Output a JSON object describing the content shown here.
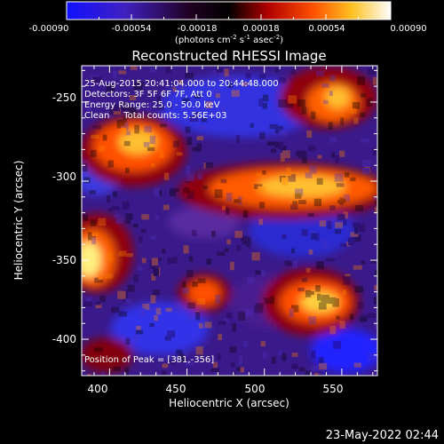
{
  "colorbar": {
    "tick_labels": [
      "-0.00090",
      "-0.00054",
      "-0.00018",
      "0.00018",
      "0.00054",
      "0.00090"
    ],
    "unit_label": "(photons cm",
    "unit_sup1": "-2",
    "unit_mid": " s",
    "unit_sup2": "-1",
    "unit_end": " asec",
    "unit_sup3": "-2",
    "unit_close": ")",
    "range": [
      -0.0009,
      0.0009
    ],
    "colormap": [
      "#0000ff",
      "#000000",
      "#c00000",
      "#ff7000",
      "#ffff40",
      "#ffffff"
    ]
  },
  "plot": {
    "title": "Reconstructed RHESSI Image",
    "xlabel": "Heliocentric X (arcsec)",
    "ylabel": "Heliocentric Y (arcsec)",
    "x_ticks": [
      "400",
      "450",
      "500",
      "550"
    ],
    "y_ticks": [
      "-250",
      "-300",
      "-350",
      "-400"
    ],
    "xlim": [
      382,
      573
    ],
    "ylim": [
      -423,
      -227
    ],
    "x_tick_values": [
      400,
      450,
      500,
      550
    ],
    "y_tick_values": [
      -250,
      -300,
      -350,
      -400
    ]
  },
  "annotations": {
    "time_range": "25-Aug-2015 20:41:04.000 to 20:44:48.000",
    "detectors": "Detectors: 3F 5F 6F 7F, Att 0",
    "energy": "Energy Range: 25.0 - 50.0 keV",
    "clean": "Clean     Total counts: 5.56E+03",
    "peak": "Position of Peak = [381,-356]"
  },
  "footer": {
    "timestamp": "23-May-2022 02:44"
  }
}
